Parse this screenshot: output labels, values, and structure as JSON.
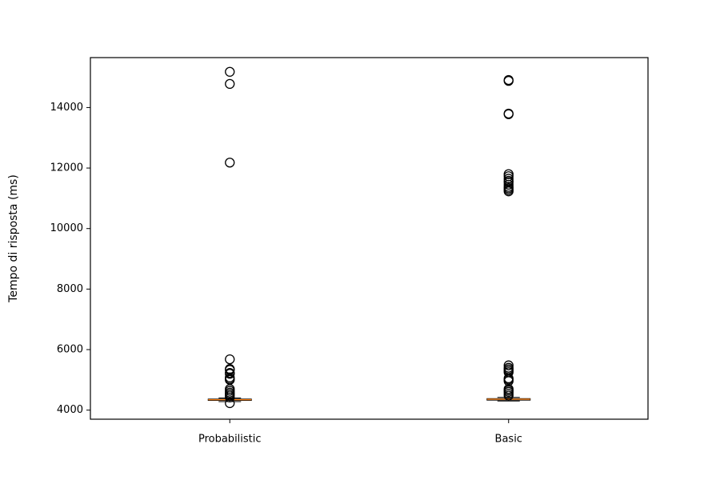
{
  "chart_data": {
    "type": "box",
    "ylabel": "Tempo di risposta (ms)",
    "xlabel": "",
    "ylim": [
      3700,
      15650
    ],
    "yticks": [
      4000,
      6000,
      8000,
      10000,
      12000,
      14000
    ],
    "categories": [
      "Probabilistic",
      "Basic"
    ],
    "grid": false,
    "boxes": [
      {
        "name": "Probabilistic",
        "whisker_low": 4280,
        "q1": 4320,
        "median": 4345,
        "q3": 4365,
        "whisker_high": 4400,
        "outliers": [
          4230,
          4420,
          4480,
          4530,
          4580,
          4640,
          4700,
          5000,
          5030,
          5080,
          5200,
          5230,
          5330,
          5360,
          5680,
          12180,
          14780,
          15180
        ]
      },
      {
        "name": "Basic",
        "whisker_low": 4300,
        "q1": 4330,
        "median": 4360,
        "q3": 4380,
        "whisker_high": 4420,
        "outliers": [
          4480,
          4540,
          4600,
          4650,
          4700,
          4960,
          5010,
          5050,
          5250,
          5300,
          5350,
          5400,
          5480,
          11230,
          11280,
          11330,
          11380,
          11450,
          11530,
          11580,
          11650,
          11730,
          11800,
          13780,
          13800,
          14880,
          14910
        ]
      }
    ],
    "colors": {
      "box": "#000000",
      "median": "#ff7f0e",
      "outlier": "#000000"
    }
  }
}
